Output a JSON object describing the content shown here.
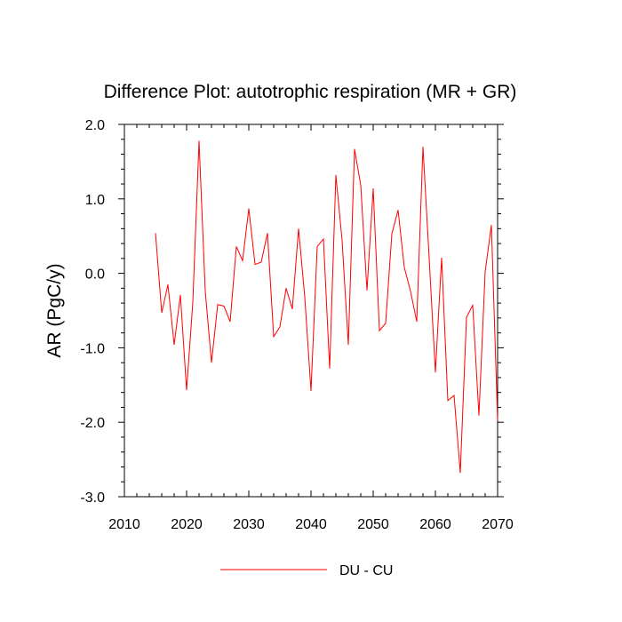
{
  "chart_data": {
    "type": "line",
    "title": "Difference Plot: autotrophic respiration (MR + GR)",
    "xlabel": "",
    "ylabel": "AR  (PgC/y)",
    "xlim": [
      2010,
      2070
    ],
    "ylim": [
      -3.0,
      2.0
    ],
    "x_ticks": [
      2010,
      2020,
      2030,
      2040,
      2050,
      2060,
      2070
    ],
    "x_tick_labels": [
      "2010",
      "2020",
      "2030",
      "2040",
      "2050",
      "2060",
      "2070"
    ],
    "y_ticks": [
      -3.0,
      -2.0,
      -1.0,
      0.0,
      1.0,
      2.0
    ],
    "y_tick_labels": [
      "-3.0",
      "-2.0",
      "-1.0",
      "0.0",
      "1.0",
      "2.0"
    ],
    "legend_position": "bottom-center",
    "series": [
      {
        "name": "DU - CU",
        "color": "#ff0000",
        "x": [
          2015,
          2016,
          2017,
          2018,
          2019,
          2020,
          2021,
          2022,
          2023,
          2024,
          2025,
          2026,
          2027,
          2028,
          2029,
          2030,
          2031,
          2032,
          2033,
          2034,
          2035,
          2036,
          2037,
          2038,
          2039,
          2040,
          2041,
          2042,
          2043,
          2044,
          2045,
          2046,
          2047,
          2048,
          2049,
          2050,
          2051,
          2052,
          2053,
          2054,
          2055,
          2056,
          2057,
          2058,
          2059,
          2060,
          2061,
          2062,
          2063,
          2064,
          2065,
          2066,
          2067,
          2068,
          2069,
          2070
        ],
        "values": [
          0.54,
          -0.53,
          -0.15,
          -0.96,
          -0.29,
          -1.57,
          -0.39,
          1.78,
          -0.24,
          -1.2,
          -0.42,
          -0.44,
          -0.65,
          0.36,
          0.17,
          0.87,
          0.12,
          0.15,
          0.54,
          -0.85,
          -0.72,
          -0.2,
          -0.48,
          0.6,
          -0.32,
          -1.58,
          0.36,
          0.46,
          -1.28,
          1.32,
          0.44,
          -0.96,
          1.67,
          1.18,
          -0.23,
          1.14,
          -0.77,
          -0.67,
          0.53,
          0.85,
          0.08,
          -0.24,
          -0.65,
          1.7,
          0.2,
          -1.33,
          0.21,
          -1.71,
          -1.64,
          -2.68,
          -0.59,
          -0.43,
          -1.91,
          0.02,
          0.65,
          -1.98
        ]
      }
    ]
  }
}
